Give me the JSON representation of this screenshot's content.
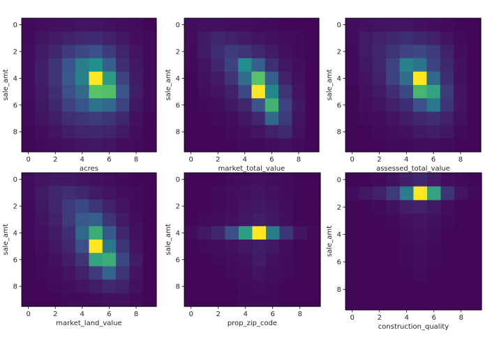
{
  "chart_data": [
    {
      "type": "heatmap",
      "xlabel": "acres",
      "ylabel": "sale_amt",
      "xticks": [
        "0",
        "2",
        "4",
        "6",
        "8"
      ],
      "yticks": [
        "0",
        "2",
        "4",
        "6",
        "8"
      ],
      "xlim": [
        -0.5,
        9.5
      ],
      "ylim": [
        9.5,
        -0.5
      ],
      "colormap": "viridis",
      "values": [
        [
          0.03,
          0.04,
          0.05,
          0.05,
          0.06,
          0.06,
          0.05,
          0.04,
          0.03,
          0.02
        ],
        [
          0.03,
          0.06,
          0.08,
          0.1,
          0.12,
          0.13,
          0.1,
          0.07,
          0.04,
          0.03
        ],
        [
          0.04,
          0.08,
          0.12,
          0.18,
          0.22,
          0.24,
          0.18,
          0.11,
          0.06,
          0.03
        ],
        [
          0.04,
          0.09,
          0.16,
          0.26,
          0.42,
          0.5,
          0.3,
          0.14,
          0.07,
          0.03
        ],
        [
          0.04,
          0.09,
          0.16,
          0.28,
          0.44,
          1.0,
          0.55,
          0.2,
          0.08,
          0.03
        ],
        [
          0.04,
          0.08,
          0.14,
          0.24,
          0.34,
          0.72,
          0.7,
          0.26,
          0.09,
          0.03
        ],
        [
          0.03,
          0.07,
          0.12,
          0.2,
          0.26,
          0.38,
          0.34,
          0.2,
          0.07,
          0.03
        ],
        [
          0.03,
          0.06,
          0.09,
          0.14,
          0.16,
          0.18,
          0.16,
          0.12,
          0.05,
          0.02
        ],
        [
          0.02,
          0.04,
          0.06,
          0.09,
          0.11,
          0.12,
          0.11,
          0.08,
          0.04,
          0.02
        ],
        [
          0.02,
          0.03,
          0.04,
          0.05,
          0.06,
          0.07,
          0.06,
          0.04,
          0.03,
          0.02
        ]
      ]
    },
    {
      "type": "heatmap",
      "xlabel": "market_total_value",
      "ylabel": "sale_amt",
      "xticks": [
        "0",
        "2",
        "4",
        "6",
        "8"
      ],
      "yticks": [
        "0",
        "2",
        "4",
        "6",
        "8"
      ],
      "xlim": [
        -0.5,
        9.5
      ],
      "ylim": [
        9.5,
        -0.5
      ],
      "colormap": "viridis",
      "values": [
        [
          0.04,
          0.05,
          0.05,
          0.04,
          0.04,
          0.03,
          0.03,
          0.02,
          0.02,
          0.02
        ],
        [
          0.04,
          0.08,
          0.12,
          0.1,
          0.08,
          0.06,
          0.05,
          0.04,
          0.03,
          0.02
        ],
        [
          0.03,
          0.08,
          0.14,
          0.18,
          0.16,
          0.12,
          0.08,
          0.05,
          0.03,
          0.02
        ],
        [
          0.03,
          0.06,
          0.12,
          0.2,
          0.48,
          0.3,
          0.14,
          0.07,
          0.04,
          0.02
        ],
        [
          0.02,
          0.05,
          0.08,
          0.16,
          0.36,
          0.72,
          0.3,
          0.1,
          0.05,
          0.02
        ],
        [
          0.02,
          0.04,
          0.06,
          0.1,
          0.22,
          1.0,
          0.46,
          0.16,
          0.06,
          0.02
        ],
        [
          0.02,
          0.03,
          0.04,
          0.07,
          0.12,
          0.26,
          0.64,
          0.2,
          0.07,
          0.02
        ],
        [
          0.02,
          0.02,
          0.03,
          0.04,
          0.07,
          0.12,
          0.34,
          0.18,
          0.06,
          0.02
        ],
        [
          0.02,
          0.02,
          0.02,
          0.03,
          0.04,
          0.06,
          0.1,
          0.13,
          0.05,
          0.02
        ],
        [
          0.02,
          0.02,
          0.02,
          0.02,
          0.03,
          0.03,
          0.04,
          0.05,
          0.03,
          0.02
        ]
      ]
    },
    {
      "type": "heatmap",
      "xlabel": "assessed_total_value",
      "ylabel": "sale_amt",
      "xticks": [
        "0",
        "2",
        "4",
        "6",
        "8"
      ],
      "yticks": [
        "0",
        "2",
        "4",
        "6",
        "8"
      ],
      "xlim": [
        -0.5,
        9.5
      ],
      "ylim": [
        9.5,
        -0.5
      ],
      "colormap": "viridis",
      "values": [
        [
          0.04,
          0.05,
          0.06,
          0.06,
          0.06,
          0.05,
          0.04,
          0.03,
          0.02,
          0.02
        ],
        [
          0.04,
          0.08,
          0.1,
          0.12,
          0.14,
          0.12,
          0.1,
          0.06,
          0.03,
          0.02
        ],
        [
          0.03,
          0.08,
          0.12,
          0.16,
          0.2,
          0.22,
          0.18,
          0.1,
          0.04,
          0.02
        ],
        [
          0.03,
          0.07,
          0.12,
          0.2,
          0.44,
          0.38,
          0.2,
          0.12,
          0.05,
          0.02
        ],
        [
          0.03,
          0.06,
          0.1,
          0.2,
          0.36,
          1.0,
          0.34,
          0.14,
          0.05,
          0.02
        ],
        [
          0.02,
          0.05,
          0.08,
          0.14,
          0.22,
          0.66,
          0.58,
          0.18,
          0.06,
          0.02
        ],
        [
          0.02,
          0.04,
          0.06,
          0.1,
          0.14,
          0.24,
          0.4,
          0.16,
          0.06,
          0.02
        ],
        [
          0.02,
          0.03,
          0.04,
          0.06,
          0.09,
          0.12,
          0.14,
          0.1,
          0.05,
          0.02
        ],
        [
          0.02,
          0.02,
          0.03,
          0.04,
          0.05,
          0.07,
          0.09,
          0.07,
          0.03,
          0.02
        ],
        [
          0.02,
          0.02,
          0.02,
          0.03,
          0.03,
          0.04,
          0.04,
          0.03,
          0.02,
          0.02
        ]
      ]
    },
    {
      "type": "heatmap",
      "xlabel": "market_land_value",
      "ylabel": "sale_amt",
      "xticks": [
        "0",
        "2",
        "4",
        "6",
        "8"
      ],
      "yticks": [
        "0",
        "2",
        "4",
        "6",
        "8"
      ],
      "xlim": [
        -0.5,
        9.5
      ],
      "ylim": [
        9.5,
        -0.5
      ],
      "colormap": "viridis",
      "values": [
        [
          0.04,
          0.06,
          0.07,
          0.07,
          0.06,
          0.05,
          0.04,
          0.03,
          0.02,
          0.02
        ],
        [
          0.04,
          0.08,
          0.12,
          0.14,
          0.12,
          0.08,
          0.06,
          0.04,
          0.03,
          0.02
        ],
        [
          0.03,
          0.07,
          0.12,
          0.18,
          0.22,
          0.16,
          0.1,
          0.06,
          0.03,
          0.02
        ],
        [
          0.03,
          0.06,
          0.1,
          0.18,
          0.28,
          0.3,
          0.16,
          0.08,
          0.04,
          0.02
        ],
        [
          0.03,
          0.05,
          0.08,
          0.14,
          0.34,
          0.62,
          0.28,
          0.12,
          0.05,
          0.02
        ],
        [
          0.02,
          0.04,
          0.07,
          0.12,
          0.24,
          1.0,
          0.4,
          0.16,
          0.06,
          0.02
        ],
        [
          0.02,
          0.03,
          0.05,
          0.09,
          0.16,
          0.58,
          0.62,
          0.22,
          0.08,
          0.02
        ],
        [
          0.02,
          0.03,
          0.04,
          0.06,
          0.1,
          0.18,
          0.32,
          0.16,
          0.06,
          0.02
        ],
        [
          0.02,
          0.02,
          0.03,
          0.04,
          0.06,
          0.09,
          0.12,
          0.1,
          0.05,
          0.02
        ],
        [
          0.02,
          0.02,
          0.02,
          0.03,
          0.03,
          0.04,
          0.05,
          0.05,
          0.03,
          0.02
        ]
      ]
    },
    {
      "type": "heatmap",
      "xlabel": "prop_zip_code",
      "ylabel": "sale_amt",
      "xticks": [
        "0",
        "2",
        "4",
        "6",
        "8"
      ],
      "yticks": [
        "0",
        "2",
        "4",
        "6",
        "8"
      ],
      "xlim": [
        -0.5,
        9.5
      ],
      "ylim": [
        9.5,
        -0.5
      ],
      "colormap": "viridis",
      "values": [
        [
          0.02,
          0.02,
          0.02,
          0.03,
          0.04,
          0.05,
          0.04,
          0.03,
          0.02,
          0.02
        ],
        [
          0.02,
          0.02,
          0.03,
          0.04,
          0.05,
          0.06,
          0.05,
          0.03,
          0.02,
          0.02
        ],
        [
          0.02,
          0.02,
          0.03,
          0.04,
          0.06,
          0.07,
          0.06,
          0.04,
          0.02,
          0.02
        ],
        [
          0.02,
          0.03,
          0.04,
          0.05,
          0.07,
          0.09,
          0.07,
          0.04,
          0.02,
          0.02
        ],
        [
          0.04,
          0.07,
          0.12,
          0.24,
          0.56,
          1.0,
          0.42,
          0.16,
          0.06,
          0.03
        ],
        [
          0.02,
          0.03,
          0.04,
          0.05,
          0.07,
          0.09,
          0.07,
          0.04,
          0.02,
          0.02
        ],
        [
          0.02,
          0.02,
          0.03,
          0.04,
          0.05,
          0.08,
          0.05,
          0.03,
          0.02,
          0.02
        ],
        [
          0.02,
          0.02,
          0.02,
          0.03,
          0.04,
          0.06,
          0.04,
          0.03,
          0.02,
          0.02
        ],
        [
          0.02,
          0.02,
          0.02,
          0.02,
          0.03,
          0.04,
          0.03,
          0.02,
          0.02,
          0.02
        ],
        [
          0.02,
          0.02,
          0.02,
          0.02,
          0.03,
          0.03,
          0.03,
          0.02,
          0.02,
          0.02
        ]
      ]
    },
    {
      "type": "heatmap",
      "xlabel": "construction_quality",
      "ylabel": "sale_amt",
      "xticks": [
        "0",
        "2",
        "4",
        "6",
        "8"
      ],
      "yticks": [
        "0",
        "2",
        "4",
        "6",
        "8"
      ],
      "xlim": [
        -0.5,
        9.5
      ],
      "ylim": [
        9.5,
        -0.5
      ],
      "colormap": "viridis",
      "values": [
        [
          0.02,
          0.02,
          0.03,
          0.05,
          0.09,
          0.12,
          0.08,
          0.04,
          0.03,
          0.02
        ],
        [
          0.04,
          0.07,
          0.1,
          0.18,
          0.42,
          1.0,
          0.58,
          0.16,
          0.06,
          0.03
        ],
        [
          0.02,
          0.02,
          0.03,
          0.05,
          0.09,
          0.1,
          0.07,
          0.04,
          0.02,
          0.02
        ],
        [
          0.02,
          0.02,
          0.02,
          0.03,
          0.05,
          0.06,
          0.05,
          0.03,
          0.02,
          0.02
        ],
        [
          0.02,
          0.02,
          0.02,
          0.02,
          0.04,
          0.05,
          0.04,
          0.02,
          0.02,
          0.02
        ],
        [
          0.02,
          0.02,
          0.02,
          0.02,
          0.03,
          0.04,
          0.03,
          0.02,
          0.02,
          0.02
        ],
        [
          0.02,
          0.02,
          0.02,
          0.02,
          0.03,
          0.04,
          0.03,
          0.02,
          0.02,
          0.02
        ],
        [
          0.02,
          0.02,
          0.02,
          0.02,
          0.02,
          0.03,
          0.02,
          0.02,
          0.02,
          0.02
        ],
        [
          0.02,
          0.02,
          0.02,
          0.02,
          0.02,
          0.02,
          0.02,
          0.02,
          0.02,
          0.02
        ],
        [
          0.02,
          0.02,
          0.02,
          0.02,
          0.02,
          0.02,
          0.02,
          0.02,
          0.02,
          0.02
        ]
      ]
    }
  ]
}
